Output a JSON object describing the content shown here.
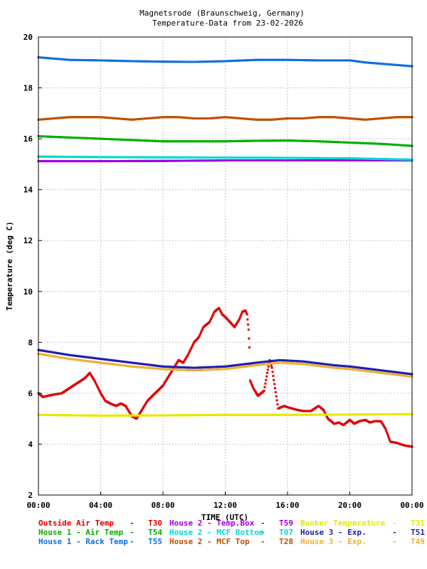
{
  "chart_data": {
    "type": "scatter",
    "title": "Magnetsrode (Braunschweig, Germany)",
    "subtitle": "Temperature-Data from 23-02-2026",
    "xlabel": "TIME (UTC)",
    "ylabel": "Temperature (deg C)",
    "xlim": [
      0,
      24
    ],
    "ylim": [
      2,
      20
    ],
    "grid": true,
    "x_ticks": [
      "00:00",
      "04:00",
      "08:00",
      "12:00",
      "16:00",
      "20:00",
      "00:00"
    ],
    "y_ticks": [
      "2",
      "4",
      "6",
      "8",
      "10",
      "12",
      "14",
      "16",
      "18",
      "20"
    ],
    "legend_position": "bottom",
    "series": [
      {
        "name": "Outside Air Temp",
        "code": "T30",
        "color": "#e00000",
        "x": [
          0,
          0.3,
          0.6,
          1,
          1.5,
          2,
          2.5,
          3,
          3.3,
          3.6,
          4,
          4.3,
          4.6,
          5,
          5.3,
          5.6,
          6,
          6.3,
          6.6,
          7,
          7.5,
          8,
          8.3,
          8.6,
          9,
          9.3,
          9.6,
          10,
          10.3,
          10.6,
          11,
          11.3,
          11.6,
          11.8,
          12,
          12.3,
          12.6,
          12.9,
          13.1,
          13.3,
          13.4,
          13.5,
          13.55,
          13.6,
          13.8,
          14.1,
          14.3,
          14.5,
          14.7,
          14.85,
          15,
          15.2,
          15.4,
          15.6,
          15.8,
          16,
          16.3,
          16.6,
          17,
          17.5,
          18,
          18.3,
          18.6,
          19,
          19.3,
          19.6,
          20,
          20.3,
          20.6,
          21,
          21.3,
          21.6,
          22,
          22.3,
          22.6,
          23,
          23.5,
          24
        ],
        "y": [
          6.0,
          5.85,
          5.9,
          5.95,
          6.0,
          6.2,
          6.4,
          6.6,
          6.8,
          6.5,
          6.0,
          5.7,
          5.6,
          5.5,
          5.6,
          5.5,
          5.1,
          5.0,
          5.3,
          5.7,
          6.0,
          6.3,
          6.6,
          6.9,
          7.3,
          7.2,
          7.5,
          8.0,
          8.2,
          8.6,
          8.8,
          9.2,
          9.35,
          9.1,
          9.0,
          8.8,
          8.6,
          8.9,
          9.2,
          9.25,
          9.1,
          8.5,
          7.8,
          6.5,
          6.2,
          5.9,
          6.0,
          6.1,
          6.8,
          7.3,
          7.0,
          6.2,
          5.4,
          5.45,
          5.5,
          5.45,
          5.4,
          5.35,
          5.3,
          5.3,
          5.5,
          5.35,
          5.0,
          4.8,
          4.85,
          4.75,
          4.95,
          4.8,
          4.9,
          4.95,
          4.85,
          4.9,
          4.9,
          4.6,
          4.1,
          4.05,
          3.95,
          3.9
        ]
      },
      {
        "name": "House 1 - Air  Temp",
        "code": "T54",
        "color": "#00b000",
        "x": [
          0,
          2,
          4,
          6,
          8,
          10,
          12,
          14,
          16,
          18,
          20,
          22,
          24
        ],
        "y": [
          16.1,
          16.05,
          16.0,
          15.95,
          15.9,
          15.9,
          15.9,
          15.92,
          15.93,
          15.9,
          15.85,
          15.8,
          15.72
        ]
      },
      {
        "name": "House 1 - Rack Temp",
        "code": "T55",
        "color": "#1070e0",
        "x": [
          0,
          1,
          2,
          4,
          6,
          8,
          10,
          12,
          14,
          16,
          18,
          20,
          21,
          22,
          24
        ],
        "y": [
          19.2,
          19.15,
          19.1,
          19.08,
          19.05,
          19.03,
          19.02,
          19.05,
          19.1,
          19.1,
          19.08,
          19.08,
          19.0,
          18.95,
          18.85
        ]
      },
      {
        "name": "House 2 - Temp.Box",
        "code": "T59",
        "color": "#a000e0",
        "x": [
          0,
          4,
          8,
          12,
          16,
          20,
          24
        ],
        "y": [
          15.12,
          15.12,
          15.13,
          15.15,
          15.15,
          15.15,
          15.15
        ]
      },
      {
        "name": "House 2 - MCF Bottom",
        "code": "T07",
        "color": "#00d8d8",
        "x": [
          0,
          4,
          8,
          12,
          16,
          20,
          24
        ],
        "y": [
          15.3,
          15.28,
          15.27,
          15.26,
          15.25,
          15.23,
          15.18
        ]
      },
      {
        "name": "House 2 - MCF Top",
        "code": "T28",
        "color": "#c05000",
        "x": [
          0,
          1,
          2,
          3,
          4,
          5,
          6,
          7,
          8,
          9,
          10,
          11,
          12,
          13,
          14,
          15,
          16,
          17,
          18,
          19,
          20,
          21,
          22,
          23,
          24
        ],
        "y": [
          16.75,
          16.8,
          16.85,
          16.85,
          16.85,
          16.8,
          16.75,
          16.8,
          16.85,
          16.85,
          16.8,
          16.8,
          16.85,
          16.8,
          16.75,
          16.75,
          16.8,
          16.8,
          16.85,
          16.85,
          16.8,
          16.75,
          16.8,
          16.85,
          16.85
        ]
      },
      {
        "name": "Bunker Temperature",
        "code": "T31",
        "color": "#e8e800",
        "x": [
          0,
          4,
          8,
          12,
          16,
          20,
          24
        ],
        "y": [
          5.15,
          5.12,
          5.13,
          5.15,
          5.15,
          5.16,
          5.18
        ]
      },
      {
        "name": "House 3 - Exp.",
        "code": "T51",
        "color": "#2020b0",
        "x": [
          0,
          2,
          4,
          6,
          8,
          10,
          12,
          14,
          15.5,
          17,
          19,
          20,
          22,
          24
        ],
        "y": [
          7.7,
          7.5,
          7.35,
          7.2,
          7.05,
          7.0,
          7.05,
          7.2,
          7.3,
          7.25,
          7.1,
          7.05,
          6.9,
          6.75
        ]
      },
      {
        "name": "House 3 - Exp.",
        "code": "T49",
        "color": "#f0b030",
        "x": [
          0,
          2,
          4,
          6,
          8,
          10,
          12,
          14,
          15.5,
          17,
          19,
          20,
          22,
          24
        ],
        "y": [
          7.55,
          7.35,
          7.2,
          7.05,
          6.95,
          6.9,
          6.95,
          7.1,
          7.2,
          7.15,
          7.0,
          6.95,
          6.8,
          6.65
        ]
      }
    ]
  }
}
